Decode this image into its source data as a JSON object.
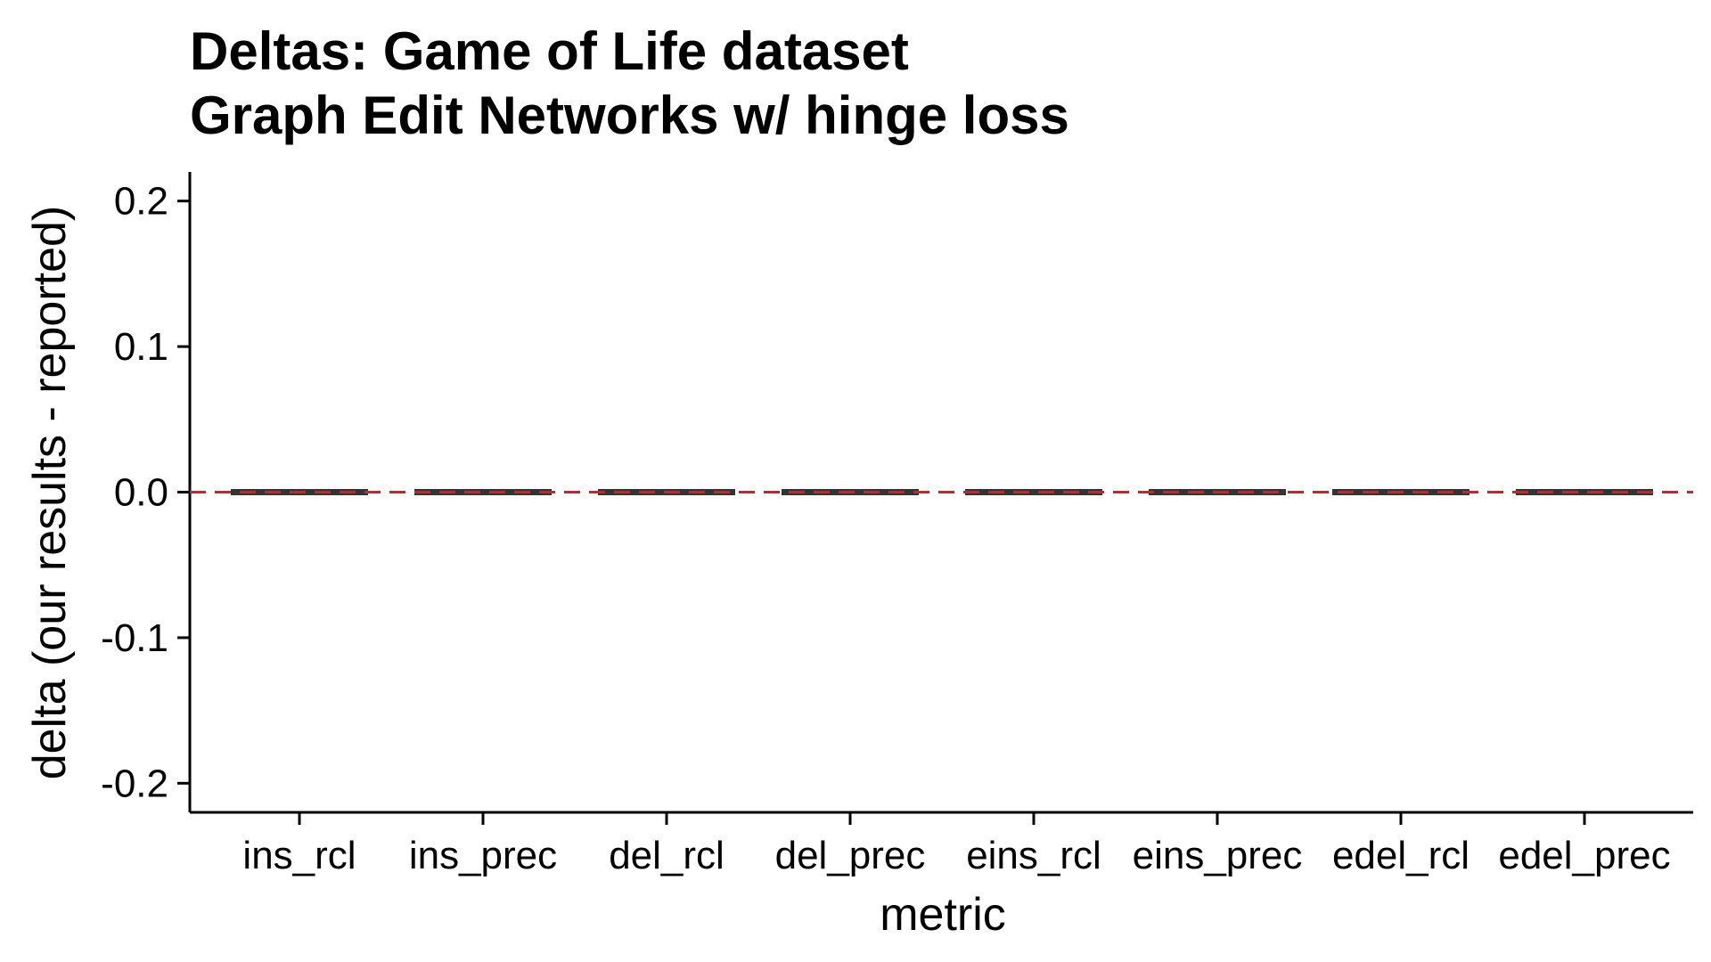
{
  "chart_data": {
    "type": "boxplot",
    "title": "Deltas: Game of Life dataset",
    "subtitle": "Graph Edit Networks w/ hinge loss",
    "xlabel": "metric",
    "ylabel": "delta (our results - reported)",
    "categories": [
      "ins_rcl",
      "ins_prec",
      "del_rcl",
      "del_prec",
      "eins_rcl",
      "eins_prec",
      "edel_rcl",
      "edel_prec"
    ],
    "values": [
      0,
      0,
      0,
      0,
      0,
      0,
      0,
      0
    ],
    "ylim": [
      -0.22,
      0.22
    ],
    "yticks": [
      0.2,
      0.1,
      0.0,
      -0.1,
      -0.2
    ],
    "ytick_labels": [
      "0.2",
      "0.1",
      "0.0",
      "-0.1",
      "-0.2"
    ],
    "reference_line": {
      "y": 0,
      "style": "dashed",
      "color": "#e31a1c"
    },
    "box_color": "#333333",
    "grid": false
  }
}
